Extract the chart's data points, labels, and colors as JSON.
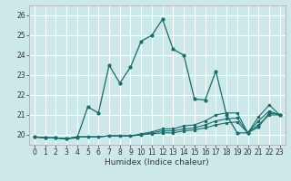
{
  "title": "",
  "xlabel": "Humidex (Indice chaleur)",
  "background_color": "#cce8e8",
  "grid_color": "#ffffff",
  "line_color": "#1a6b6b",
  "ylim": [
    19.5,
    26.5
  ],
  "xlim": [
    -0.5,
    23.5
  ],
  "yticks": [
    20,
    21,
    22,
    23,
    24,
    25,
    26
  ],
  "xticks": [
    0,
    1,
    2,
    3,
    4,
    5,
    6,
    7,
    8,
    9,
    10,
    11,
    12,
    13,
    14,
    15,
    16,
    17,
    18,
    19,
    20,
    21,
    22,
    23
  ],
  "line1_x": [
    0,
    1,
    2,
    3,
    4,
    5,
    6,
    7,
    8,
    9,
    10,
    11,
    12,
    13,
    14,
    15,
    16,
    17,
    18,
    19,
    20,
    21,
    22,
    23
  ],
  "line1_y": [
    19.9,
    19.85,
    19.85,
    19.8,
    19.85,
    21.4,
    21.1,
    23.5,
    22.6,
    23.4,
    24.7,
    25.0,
    25.8,
    24.3,
    24.0,
    21.8,
    21.75,
    23.2,
    21.0,
    20.1,
    20.1,
    20.4,
    21.1,
    21.0
  ],
  "line2_x": [
    0,
    1,
    2,
    3,
    4,
    5,
    6,
    7,
    8,
    9,
    10,
    11,
    12,
    13,
    14,
    15,
    16,
    17,
    18,
    19,
    20,
    21,
    22,
    23
  ],
  "line2_y": [
    19.9,
    19.85,
    19.85,
    19.8,
    19.9,
    19.9,
    19.9,
    19.95,
    19.95,
    19.95,
    20.0,
    20.05,
    20.1,
    20.1,
    20.2,
    20.25,
    20.35,
    20.5,
    20.6,
    20.65,
    20.1,
    20.5,
    21.0,
    21.0
  ],
  "line3_x": [
    0,
    1,
    2,
    3,
    4,
    5,
    6,
    7,
    8,
    9,
    10,
    11,
    12,
    13,
    14,
    15,
    16,
    17,
    18,
    19,
    20,
    21,
    22,
    23
  ],
  "line3_y": [
    19.9,
    19.85,
    19.85,
    19.8,
    19.9,
    19.9,
    19.9,
    19.95,
    19.95,
    19.95,
    20.0,
    20.1,
    20.2,
    20.2,
    20.3,
    20.35,
    20.5,
    20.7,
    20.8,
    20.85,
    20.1,
    20.7,
    21.2,
    21.0
  ],
  "line4_x": [
    0,
    1,
    2,
    3,
    4,
    5,
    6,
    7,
    8,
    9,
    10,
    11,
    12,
    13,
    14,
    15,
    16,
    17,
    18,
    19,
    20,
    21,
    22,
    23
  ],
  "line4_y": [
    19.9,
    19.85,
    19.85,
    19.8,
    19.9,
    19.9,
    19.9,
    19.95,
    19.95,
    19.95,
    20.05,
    20.15,
    20.3,
    20.3,
    20.45,
    20.5,
    20.7,
    21.0,
    21.1,
    21.1,
    20.1,
    20.9,
    21.5,
    21.0
  ]
}
